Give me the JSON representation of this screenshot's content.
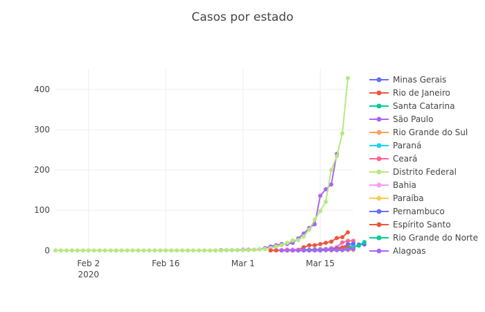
{
  "chart_data": {
    "type": "line",
    "title": "Casos por estado",
    "x_axis": {
      "range": [
        "2020-01-27",
        "2020-03-21"
      ],
      "ticks": [
        {
          "date": "2020-02-02",
          "label": "Feb 2",
          "sublabel": "2020"
        },
        {
          "date": "2020-02-16",
          "label": "Feb 16",
          "sublabel": ""
        },
        {
          "date": "2020-03-01",
          "label": "Mar 1",
          "sublabel": ""
        },
        {
          "date": "2020-03-15",
          "label": "Mar 15",
          "sublabel": ""
        }
      ]
    },
    "y_axis": {
      "range": [
        -15,
        450
      ],
      "ticks": [
        {
          "value": 0,
          "label": "0"
        },
        {
          "value": 100,
          "label": "100"
        },
        {
          "value": 200,
          "label": "200"
        },
        {
          "value": 300,
          "label": "300"
        },
        {
          "value": 400,
          "label": "400"
        }
      ]
    },
    "grid": true,
    "legend_position": "right",
    "series": [
      {
        "name": "Minas Gerais",
        "color": "#636efa",
        "start": "2020-03-09",
        "values": [
          0,
          0,
          0,
          0,
          0,
          0,
          0,
          1,
          1,
          2,
          2,
          4,
          7,
          15,
          15
        ]
      },
      {
        "name": "Rio de Janeiro",
        "color": "#ef553b",
        "start": "2020-03-06",
        "values": [
          1,
          1,
          1,
          2,
          2,
          2,
          8,
          13,
          13,
          16,
          19,
          22,
          31,
          33,
          45
        ]
      },
      {
        "name": "Santa Catarina",
        "color": "#00cc96",
        "start": "2020-03-12",
        "values": [
          0,
          0,
          1,
          2,
          2,
          4,
          6,
          7,
          7,
          9,
          12,
          21
        ]
      },
      {
        "name": "São Paulo",
        "color": "#ab63fa",
        "start": "2020-02-26",
        "values": [
          1,
          1,
          1,
          1,
          2,
          2,
          2,
          3,
          6,
          10,
          13,
          16,
          16,
          19,
          30,
          42,
          56,
          65,
          136,
          152,
          164,
          240
        ]
      },
      {
        "name": "Rio Grande do Sul",
        "color": "#ffa15a",
        "start": "2020-03-10",
        "values": [
          1,
          1,
          1,
          1,
          2,
          2,
          4,
          5,
          6,
          6,
          11,
          19
        ]
      },
      {
        "name": "Paraná",
        "color": "#19d3f3",
        "start": "2020-03-12",
        "values": [
          1,
          2,
          2,
          4,
          4,
          6,
          6,
          6,
          8,
          14
        ]
      },
      {
        "name": "Ceará",
        "color": "#ff6692",
        "start": "2020-03-15",
        "values": [
          3,
          4,
          6,
          9,
          20,
          24,
          24
        ]
      },
      {
        "name": "Distrito Federal",
        "color": "#b6e880",
        "start": "2020-01-27",
        "values": [
          0,
          0,
          0,
          0,
          0,
          0,
          0,
          0,
          0,
          0,
          0,
          0,
          0,
          0,
          0,
          0,
          0,
          0,
          0,
          0,
          0,
          0,
          0,
          0,
          0,
          0,
          0,
          0,
          0,
          0,
          0,
          1,
          1,
          1,
          1,
          1,
          2,
          3,
          4,
          6,
          10,
          13,
          19,
          25,
          26,
          35,
          52,
          77,
          98,
          121,
          200,
          234,
          291,
          428
        ]
      },
      {
        "name": "Bahia",
        "color": "#ff97ff",
        "start": "2020-03-06",
        "values": [
          1,
          1,
          1,
          1,
          2,
          2,
          2,
          2,
          3,
          3,
          3,
          6,
          9,
          9,
          10
        ]
      },
      {
        "name": "Paraíba",
        "color": "#fecb52",
        "start": "2020-03-17",
        "values": [
          0,
          0,
          1,
          1,
          1
        ]
      },
      {
        "name": "Pernambuco",
        "color": "#636efa",
        "start": "2020-03-12",
        "values": [
          2,
          2,
          2,
          2,
          2,
          4,
          6,
          7,
          16,
          17
        ]
      },
      {
        "name": "Espírito Santo",
        "color": "#ef553b",
        "start": "2020-03-06",
        "values": [
          0,
          0,
          0,
          0,
          0,
          1,
          1,
          1,
          1,
          1,
          1,
          2,
          4,
          7,
          9
        ]
      },
      {
        "name": "Rio Grande do Norte",
        "color": "#00cc96",
        "start": "2020-03-12",
        "values": [
          1,
          1,
          1,
          1,
          1,
          1,
          1,
          1,
          3,
          3
        ]
      },
      {
        "name": "Alagoas",
        "color": "#ab63fa",
        "start": "2020-03-08",
        "values": [
          0,
          0,
          0,
          0,
          0,
          0,
          0,
          0,
          1,
          1,
          1,
          1,
          2,
          4
        ]
      }
    ]
  }
}
